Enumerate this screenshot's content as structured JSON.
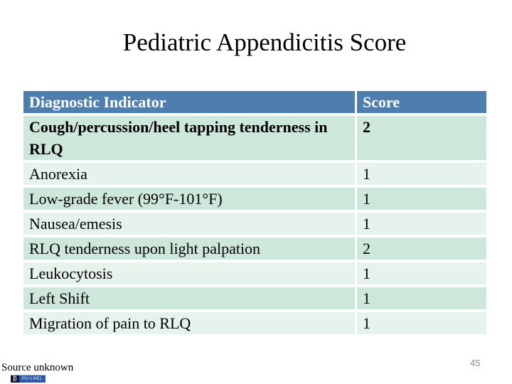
{
  "slide": {
    "title": "Pediatric Appendicitis Score",
    "source_note": "Source unknown",
    "page_number": "45",
    "watermark_label": "PU-LNEL",
    "watermark_icon_glyph": "₿"
  },
  "table": {
    "columns": [
      "Diagnostic Indicator",
      "Score"
    ],
    "rows": [
      {
        "indicator": "Cough/percussion/heel tapping tenderness in RLQ",
        "score": "2",
        "bold": true
      },
      {
        "indicator": "Anorexia",
        "score": "1",
        "bold": false
      },
      {
        "indicator": "Low-grade fever (99°F-101°F)",
        "score": "1",
        "bold": false
      },
      {
        "indicator": "Nausea/emesis",
        "score": "1",
        "bold": false
      },
      {
        "indicator": "RLQ tenderness upon light palpation",
        "score": "2",
        "bold": false
      },
      {
        "indicator": "Leukocytosis",
        "score": "1",
        "bold": false
      },
      {
        "indicator": "Left Shift",
        "score": "1",
        "bold": false
      },
      {
        "indicator": "Migration of pain to RLQ",
        "score": "1",
        "bold": false
      }
    ]
  },
  "colors": {
    "header_bg": "#4E7EAE",
    "header_text": "#FFFFFF",
    "row_dark": "#CEE7DB",
    "row_light": "#E6F2EC",
    "page_number": "#8A8A8A",
    "watermark_bg": "#2E57A8"
  }
}
